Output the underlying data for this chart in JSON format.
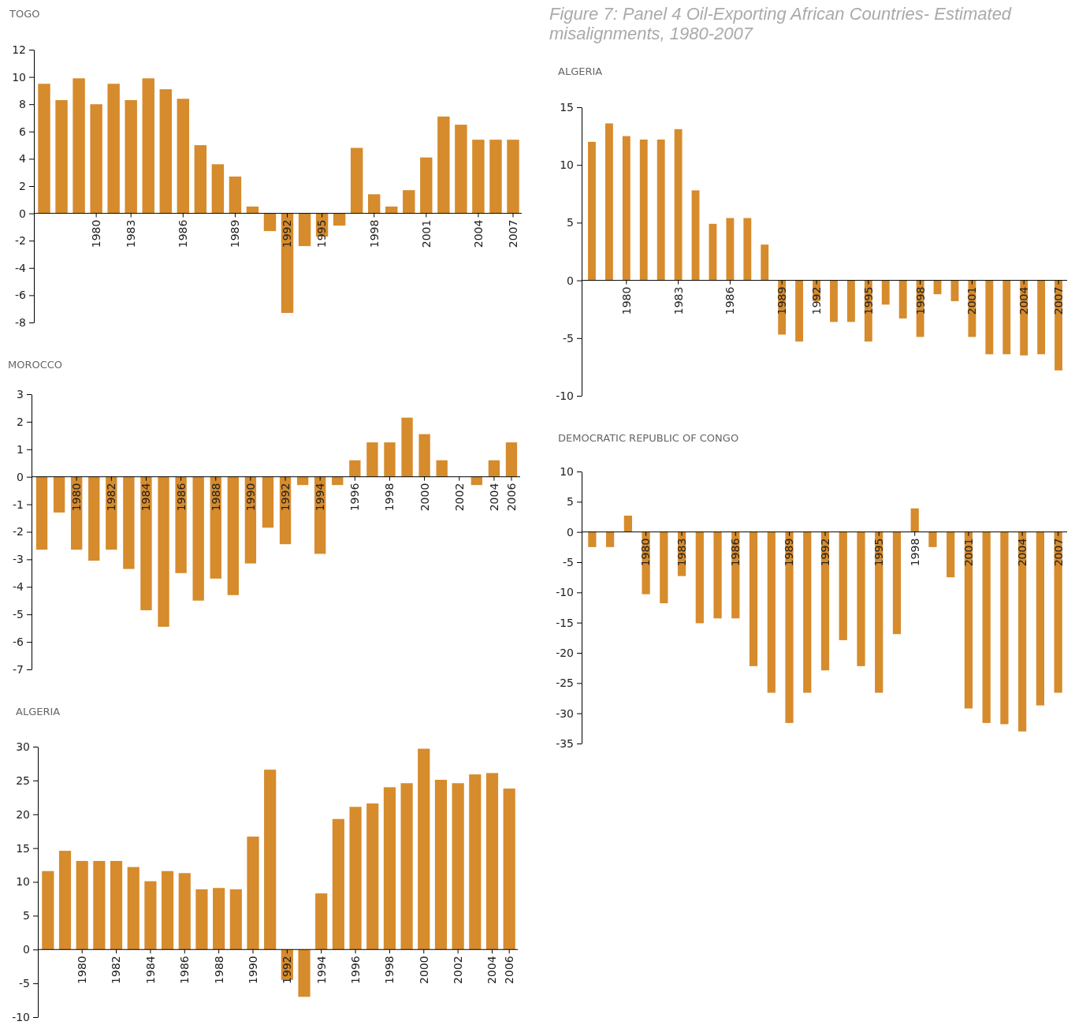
{
  "chart_data": [
    {
      "type": "bar",
      "title": "TOGO",
      "color": "#d68b2c",
      "ylim": [
        -8,
        12
      ],
      "yticks": [
        -8,
        -6,
        -4,
        -2,
        0,
        2,
        4,
        6,
        8,
        10,
        12
      ],
      "categories": [
        null,
        null,
        null,
        "1980",
        null,
        "1983",
        null,
        null,
        "1986",
        null,
        null,
        "1989",
        null,
        null,
        "1992",
        null,
        "1995",
        null,
        null,
        "1998",
        null,
        null,
        "2001",
        null,
        null,
        "2004",
        null,
        "2007"
      ],
      "values": [
        9.5,
        8.3,
        9.9,
        8.0,
        9.5,
        8.3,
        9.9,
        9.1,
        8.4,
        5.0,
        3.6,
        2.7,
        0.5,
        -1.3,
        -7.3,
        -2.4,
        -1.7,
        -0.9,
        4.8,
        1.4,
        0.5,
        1.7,
        4.1,
        7.1,
        6.5,
        5.4,
        5.4,
        5.4
      ]
    },
    {
      "type": "bar",
      "title": "ALGERIA",
      "annotations": [
        "Figure 7: Panel 4 Oil-Exporting African Countries- Estimated misalignments, 1980-2007"
      ],
      "color": "#d68b2c",
      "ylim": [
        -10,
        15
      ],
      "yticks": [
        -10,
        -5,
        0,
        5,
        10,
        15
      ],
      "categories": [
        null,
        null,
        "1980",
        null,
        null,
        "1983",
        null,
        null,
        "1986",
        null,
        null,
        "1989",
        null,
        "1992",
        null,
        null,
        "1995",
        null,
        null,
        "1998",
        null,
        null,
        "2001",
        null,
        null,
        "2004",
        null,
        "2007"
      ],
      "values": [
        12.0,
        13.6,
        12.5,
        12.2,
        12.2,
        13.1,
        7.8,
        4.9,
        5.4,
        5.4,
        3.1,
        -4.7,
        -5.3,
        -1.8,
        -3.6,
        -3.6,
        -5.3,
        -2.1,
        -3.3,
        -4.9,
        -1.2,
        -1.8,
        -4.9,
        -6.4,
        -6.4,
        -6.5,
        -6.4,
        -7.8
      ]
    },
    {
      "type": "bar",
      "title": "MOROCCO",
      "color": "#d68b2c",
      "ylim": [
        -7,
        3
      ],
      "yticks": [
        -7,
        -6,
        -5,
        -4,
        -3,
        -2,
        -1,
        0,
        1,
        2,
        3
      ],
      "categories": [
        null,
        null,
        "1980",
        null,
        "1982",
        null,
        "1984",
        null,
        "1986",
        null,
        "1988",
        null,
        "1990",
        null,
        "1992",
        null,
        "1994",
        null,
        "1996",
        null,
        "1998",
        null,
        "2000",
        null,
        "2002",
        null,
        "2004",
        "2006"
      ],
      "values": [
        -2.65,
        -1.3,
        -2.65,
        -3.05,
        -2.65,
        -3.35,
        -4.85,
        -5.45,
        -3.5,
        -4.5,
        -3.7,
        -4.3,
        -3.15,
        -1.85,
        -2.45,
        -0.3,
        -2.8,
        -0.3,
        0.6,
        1.25,
        1.25,
        2.15,
        1.55,
        0.6,
        null,
        -0.3,
        0.6,
        1.25
      ]
    },
    {
      "type": "bar",
      "title": "DEMOCRATIC REPUBLIC OF CONGO",
      "color": "#d68b2c",
      "ylim": [
        -35,
        10
      ],
      "yticks": [
        -35,
        -30,
        -25,
        -20,
        -15,
        -10,
        -5,
        0,
        5,
        10
      ],
      "categories": [
        null,
        null,
        null,
        "1980",
        null,
        "1983",
        null,
        null,
        "1986",
        null,
        null,
        "1989",
        null,
        "1992",
        null,
        null,
        "1995",
        null,
        "1998",
        null,
        null,
        "2001",
        null,
        null,
        "2004",
        null,
        "2007"
      ],
      "values": [
        -2.5,
        -2.5,
        2.7,
        -10.3,
        -11.8,
        -7.3,
        -15.1,
        -14.3,
        -14.3,
        -22.2,
        -26.6,
        -31.6,
        -26.6,
        -22.9,
        -17.9,
        -22.2,
        -26.6,
        -16.9,
        3.9,
        -2.5,
        -7.5,
        -29.2,
        -31.6,
        -31.8,
        -33.0,
        -28.7,
        -26.6
      ]
    },
    {
      "type": "bar",
      "title": "ALGERIA",
      "color": "#d68b2c",
      "ylim": [
        -10,
        30
      ],
      "yticks": [
        -10,
        -5,
        0,
        5,
        10,
        15,
        20,
        25,
        30
      ],
      "categories": [
        null,
        null,
        "1980",
        null,
        "1982",
        null,
        "1984",
        null,
        "1986",
        null,
        "1988",
        null,
        "1990",
        null,
        "1992",
        null,
        "1994",
        null,
        "1996",
        null,
        "1998",
        null,
        "2000",
        null,
        "2002",
        null,
        "2004",
        "2006"
      ],
      "values": [
        11.6,
        14.6,
        13.1,
        13.1,
        13.1,
        12.2,
        10.1,
        11.6,
        11.3,
        8.9,
        9.1,
        8.9,
        16.7,
        26.6,
        -4.5,
        -7.0,
        8.3,
        19.3,
        21.1,
        21.6,
        24.0,
        24.6,
        29.7,
        25.1,
        24.6,
        25.9,
        26.1,
        23.8
      ]
    }
  ]
}
